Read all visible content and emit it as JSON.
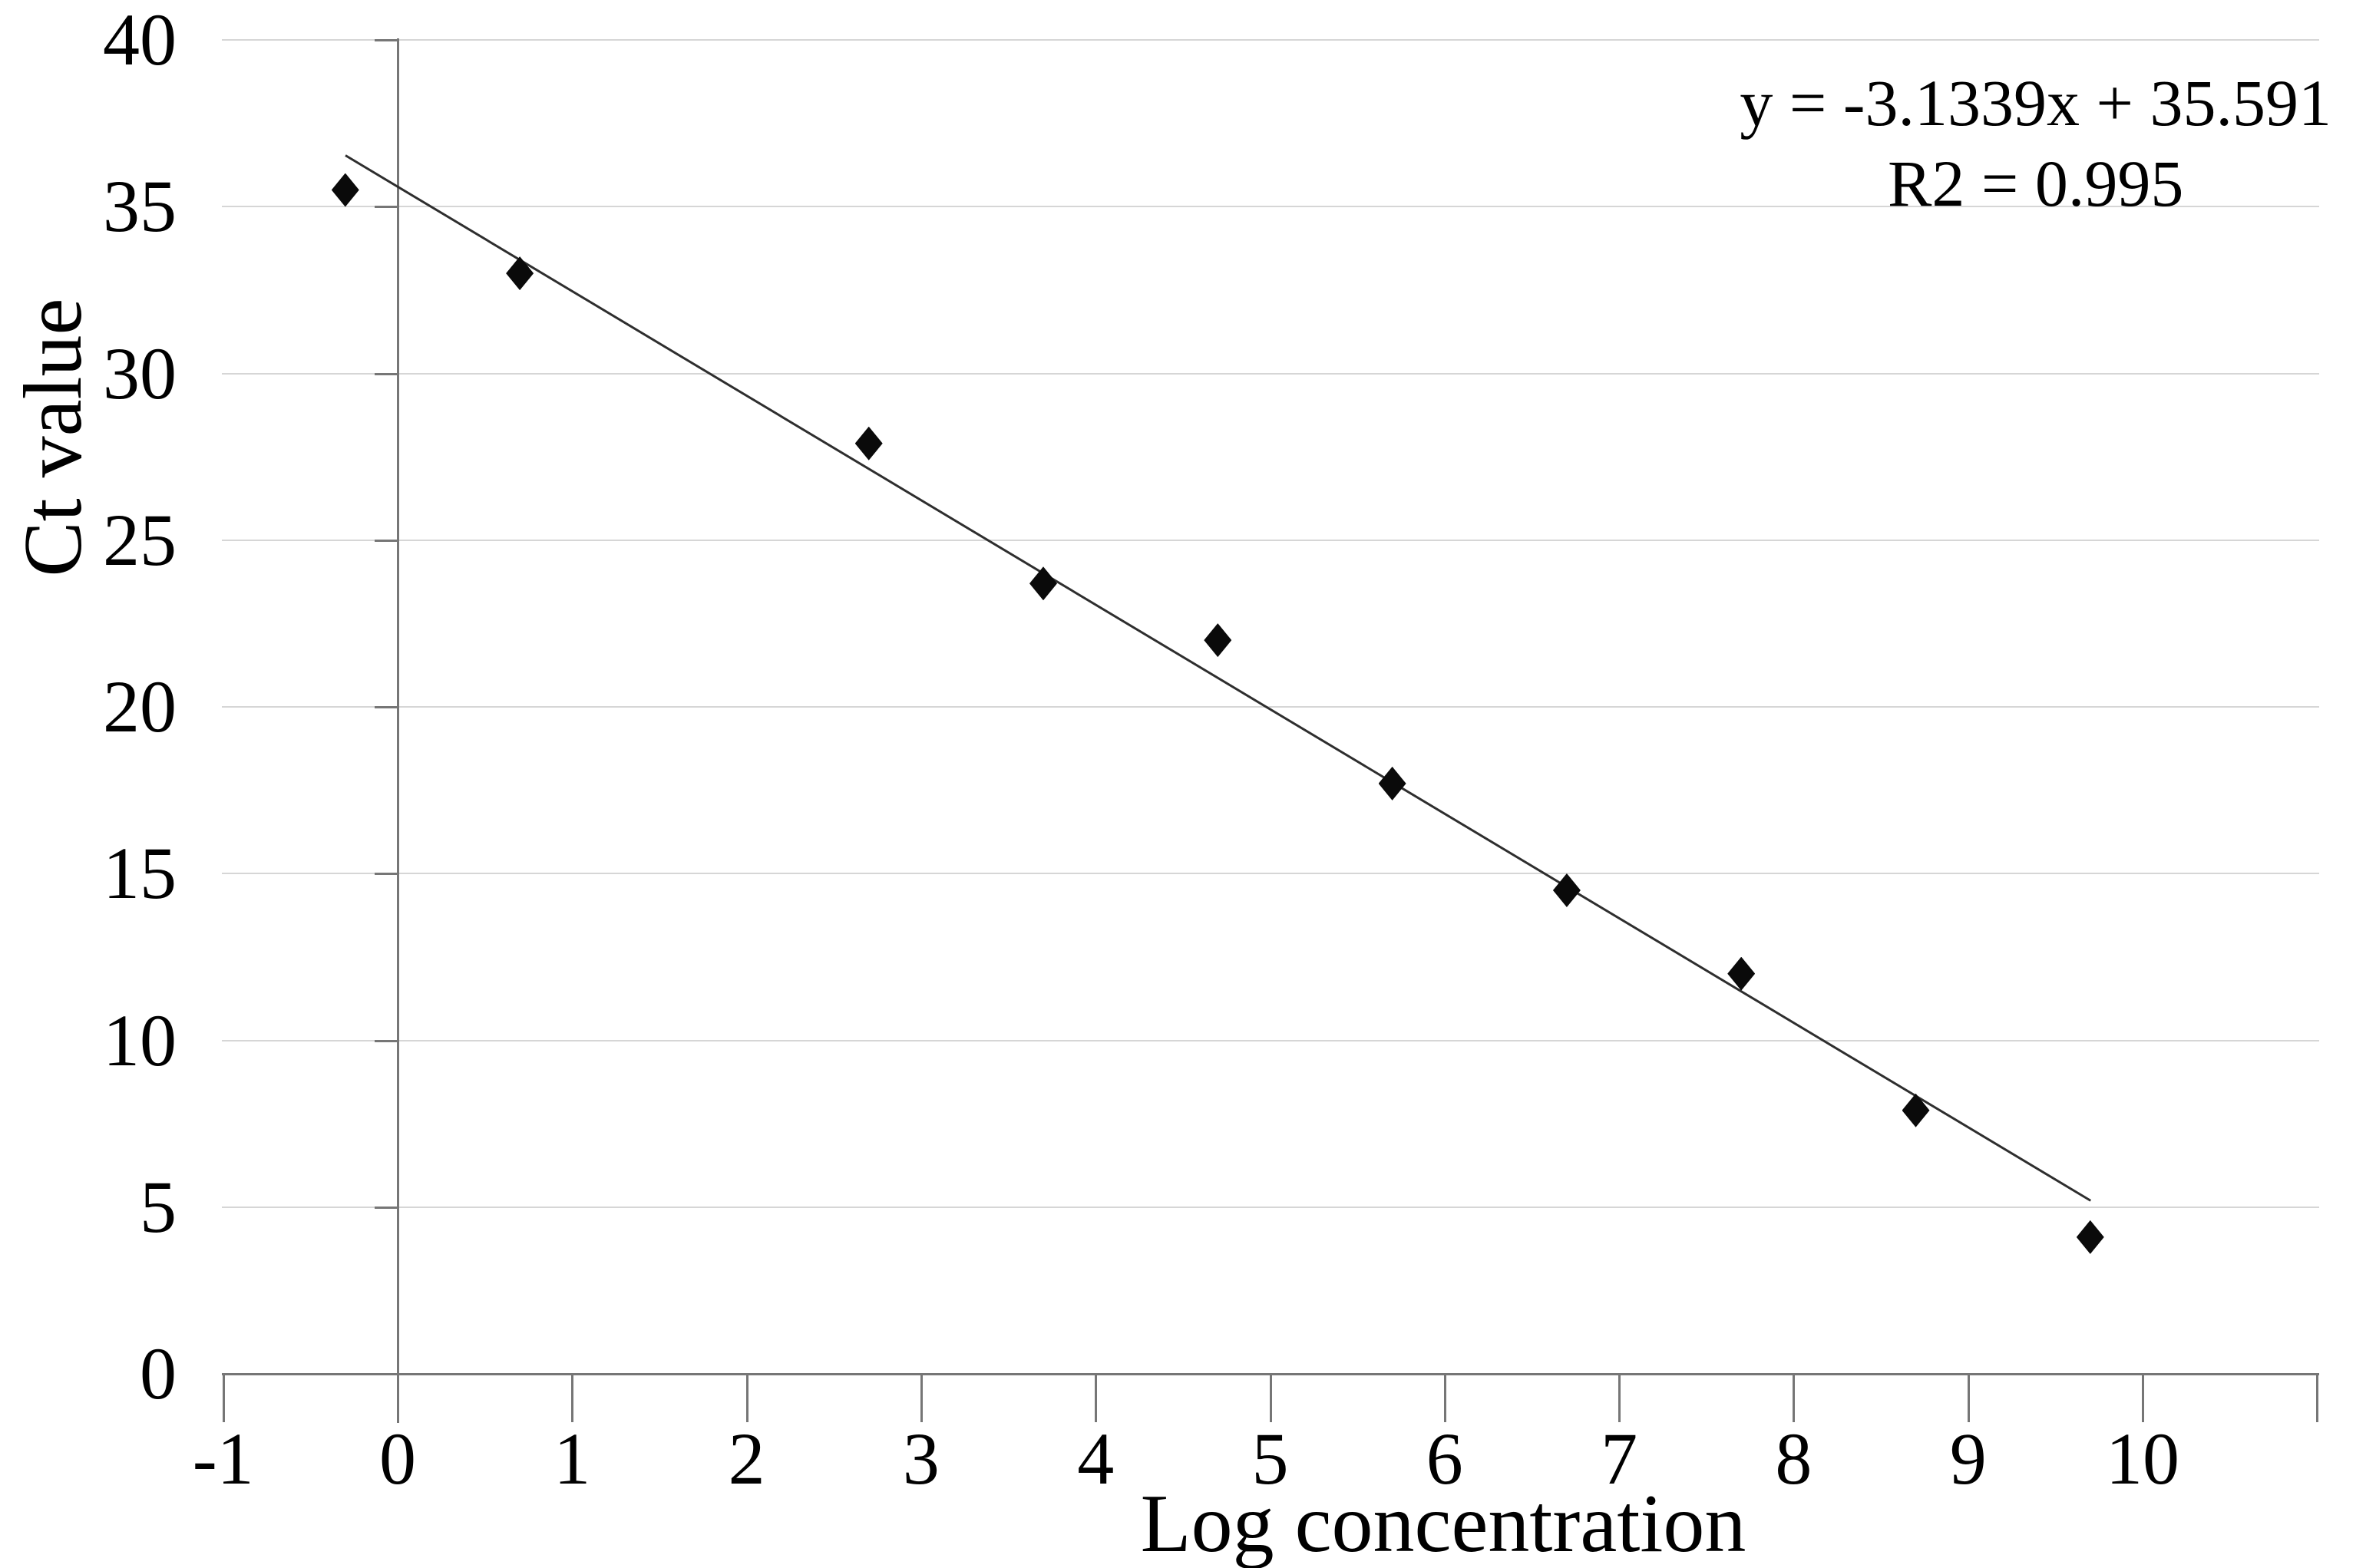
{
  "chart_data": {
    "type": "scatter",
    "title": "",
    "xlabel": "Log concentration",
    "ylabel": "Ct value",
    "xlim": [
      -1,
      11
    ],
    "ylim": [
      0,
      40
    ],
    "x_ticks": [
      -1,
      0,
      1,
      2,
      3,
      4,
      5,
      6,
      7,
      8,
      9,
      10
    ],
    "y_ticks": [
      0,
      5,
      10,
      15,
      20,
      25,
      30,
      35,
      40
    ],
    "grid": "horizontal-only",
    "legend": "none",
    "marker_shape": "diamond",
    "points": [
      {
        "x": -0.3,
        "y": 35.5
      },
      {
        "x": 0.7,
        "y": 33.0
      },
      {
        "x": 2.7,
        "y": 27.9
      },
      {
        "x": 3.7,
        "y": 23.7
      },
      {
        "x": 4.7,
        "y": 22.0
      },
      {
        "x": 5.7,
        "y": 17.7
      },
      {
        "x": 6.7,
        "y": 14.5
      },
      {
        "x": 7.7,
        "y": 12.0
      },
      {
        "x": 8.7,
        "y": 7.9
      },
      {
        "x": 9.7,
        "y": 4.1
      }
    ],
    "trendline": {
      "slope": -3.1339,
      "intercept": 35.591,
      "x_start": -0.3,
      "x_end": 9.7
    },
    "annotation": {
      "line1": "y = -3.1339x + 35.591",
      "line2": "R2 = 0.995"
    },
    "colors": {
      "background": "#ffffff",
      "marker": "#0a0a0a",
      "trendline": "#2e2e2e",
      "axis": "#767676",
      "gridline": "#d6d6d6",
      "text": "#000000"
    }
  }
}
